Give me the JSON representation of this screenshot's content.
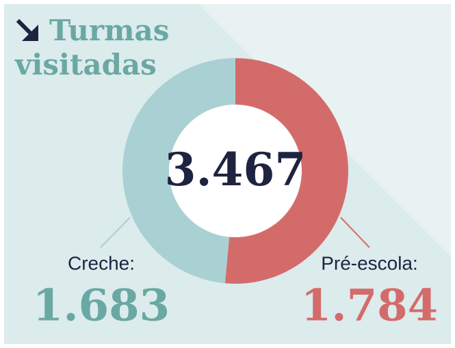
{
  "chart_data": {
    "type": "donut",
    "title": [
      "Turmas",
      "visitadas"
    ],
    "center_text": "3.467",
    "categories": [
      "Creche:",
      "Pré-escola:"
    ],
    "values": [
      1683,
      1784
    ],
    "value_labels": [
      "1.683",
      "1.784"
    ],
    "colors": [
      "#a9d1d4",
      "#d46b6b"
    ],
    "label_colors": [
      "#6aa8a3",
      "#d46b6b"
    ]
  }
}
